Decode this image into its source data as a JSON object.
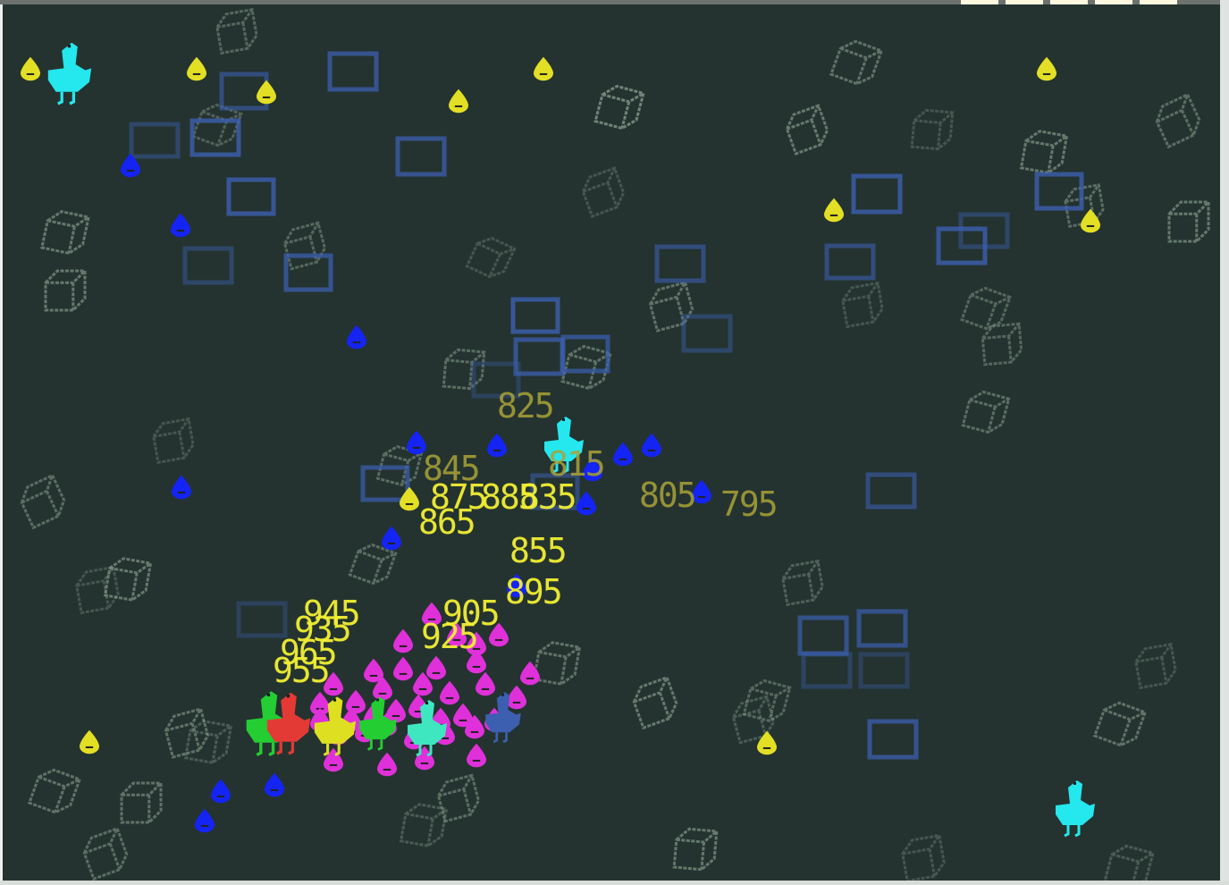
{
  "colors": {
    "background": "#243330",
    "cube": "#91a795",
    "box": "#3c5fb0",
    "yellow_drop": "#e3df24",
    "blue_drop": "#1424f4",
    "magenta_drop": "#df30d9",
    "cyan_bird": "#25e7ee",
    "green_bird": "#23cd32",
    "red_bird": "#e43a35",
    "yellow_bird": "#dfdf22",
    "score_dim": "#aaa337",
    "score_bright": "#f2ef33"
  },
  "icons": {
    "player": "bird-icon",
    "enemy_drop": "drop-icon",
    "obstacle_cube": "cube-icon",
    "obstacle_box": "box-icon"
  },
  "scores": [
    {
      "text": "825",
      "bright": false
    },
    {
      "text": "845",
      "bright": false
    },
    {
      "text": "815",
      "bright": false
    },
    {
      "text": "805",
      "bright": false
    },
    {
      "text": "795",
      "bright": false
    },
    {
      "text": "875",
      "bright": true
    },
    {
      "text": "885",
      "bright": true
    },
    {
      "text": "835",
      "bright": true
    },
    {
      "text": "865",
      "bright": true
    },
    {
      "text": "855",
      "bright": true
    },
    {
      "text": "895",
      "bright": true
    },
    {
      "text": "945",
      "bright": true
    },
    {
      "text": "935",
      "bright": true
    },
    {
      "text": "905",
      "bright": true
    },
    {
      "text": "925",
      "bright": true
    },
    {
      "text": "965",
      "bright": true
    },
    {
      "text": "955",
      "bright": true
    }
  ]
}
